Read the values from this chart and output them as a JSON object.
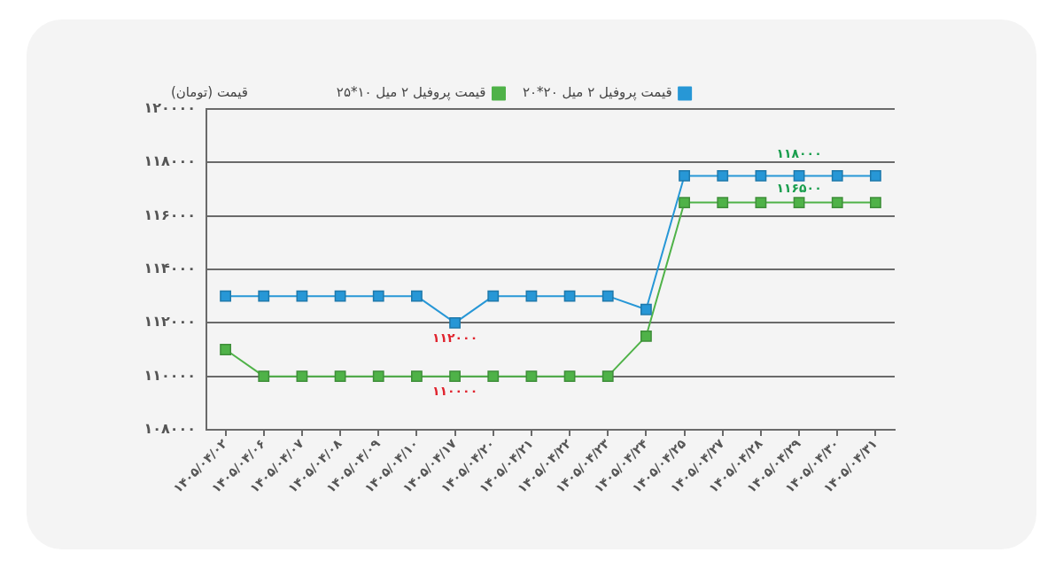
{
  "chart_data": {
    "type": "line",
    "ylabel": "قیمت (تومان)",
    "categories": [
      "۱۴۰۵/۰۴/۰۲",
      "۱۴۰۵/۰۴/۰۶",
      "۱۴۰۵/۰۴/۰۷",
      "۱۴۰۵/۰۴/۰۸",
      "۱۴۰۵/۰۴/۰۹",
      "۱۴۰۵/۰۴/۱۰",
      "۱۴۰۵/۰۴/۱۷",
      "۱۴۰۵/۰۴/۲۰",
      "۱۴۰۵/۰۴/۲۱",
      "۱۴۰۵/۰۴/۲۲",
      "۱۴۰۵/۰۴/۲۳",
      "۱۴۰۵/۰۴/۲۴",
      "۱۴۰۵/۰۴/۲۵",
      "۱۴۰۵/۰۴/۲۷",
      "۱۴۰۵/۰۴/۲۸",
      "۱۴۰۵/۰۴/۲۹",
      "۱۴۰۵/۰۴/۳۰",
      "۱۴۰۵/۰۴/۳۱"
    ],
    "series": [
      {
        "name": "قیمت پروفیل ۲ میل ۲۰*۲۰",
        "color": "#2797d6",
        "values": [
          113000,
          113000,
          113000,
          113000,
          113000,
          113000,
          112000,
          113000,
          113000,
          113000,
          113000,
          112500,
          117500,
          117500,
          117500,
          117500,
          117500,
          117500
        ]
      },
      {
        "name": "قیمت پروفیل ۲ میل ۱۰*۲۵",
        "color": "#4fb248",
        "values": [
          111000,
          110000,
          110000,
          110000,
          110000,
          110000,
          110000,
          110000,
          110000,
          110000,
          110000,
          111500,
          116500,
          116500,
          116500,
          116500,
          116500,
          116500
        ]
      }
    ],
    "ylim": [
      108000,
      120000
    ],
    "yticks": [
      {
        "value": 108000,
        "label": "۱۰۸۰۰۰"
      },
      {
        "value": 110000,
        "label": "۱۱۰۰۰۰"
      },
      {
        "value": 112000,
        "label": "۱۱۲۰۰۰"
      },
      {
        "value": 114000,
        "label": "۱۱۴۰۰۰"
      },
      {
        "value": 116000,
        "label": "۱۱۶۰۰۰"
      },
      {
        "value": 118000,
        "label": "۱۱۸۰۰۰"
      },
      {
        "value": 120000,
        "label": "۱۲۰۰۰۰"
      }
    ],
    "annotations": [
      {
        "text": "۱۱۸۰۰۰",
        "x": "۱۴۰۵/۰۴/۲۹",
        "y": 117500
      },
      {
        "text": "۱۱۶۵۰۰",
        "x": "۱۴۰۵/۰۴/۲۹",
        "y": 116500
      },
      {
        "text": "۱۱۲۰۰۰",
        "x": "۱۴۰۵/۰۴/۱۷",
        "y": 112000
      },
      {
        "text": "۱۱۰۰۰۰",
        "x": "۱۴۰۵/۰۴/۱۷",
        "y": 110000
      }
    ],
    "grid": "y",
    "legend": "top",
    "marker": "square"
  }
}
